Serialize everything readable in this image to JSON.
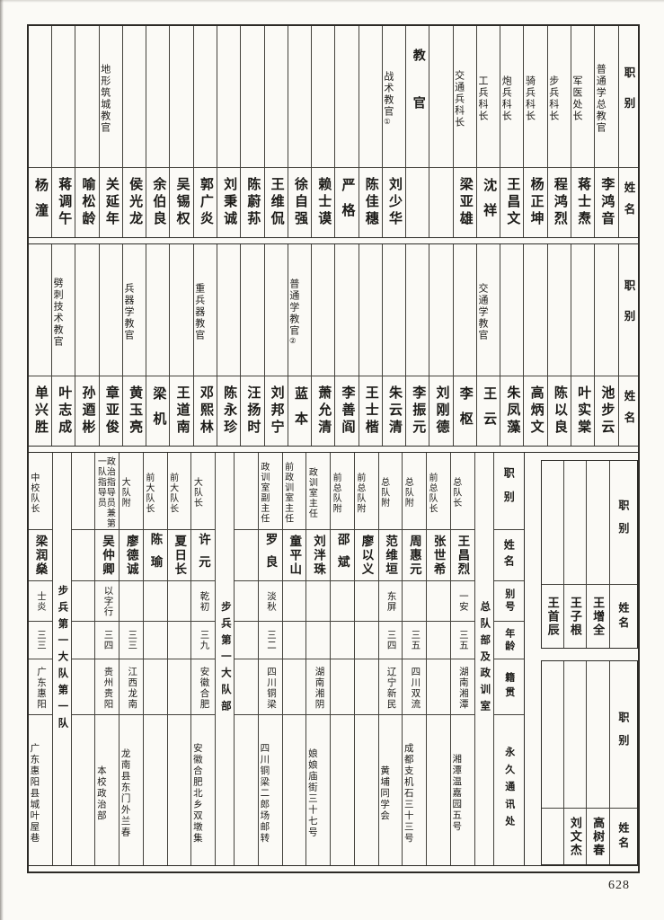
{
  "page_number": "628",
  "bands": [
    {
      "id": "instructors-upper",
      "header": {
        "position_label": "职别",
        "name_label": "姓名"
      },
      "columns": [
        {
          "position": "普通学总教官",
          "name": "李鸿音"
        },
        {
          "position": "军医处长",
          "name": "蒋士焘"
        },
        {
          "position": "步兵科长",
          "name": "程鸿烈"
        },
        {
          "position": "骑兵科长",
          "name": "杨正坤"
        },
        {
          "position": "炮兵科长",
          "name": "王昌文"
        },
        {
          "position": "工兵科长",
          "name": "沈祥"
        },
        {
          "position": "交通兵科长",
          "name": "梁亚雄"
        },
        {
          "position": "",
          "name": ""
        },
        {
          "position": "教官",
          "name": "",
          "wide": true
        },
        {
          "position": "战术教官",
          "footnote": "①",
          "name": "刘少华"
        },
        {
          "position": "",
          "name": "陈佳穗"
        },
        {
          "position": "",
          "name": "严格"
        },
        {
          "position": "",
          "name": "赖士谟"
        },
        {
          "position": "",
          "name": "徐自强"
        },
        {
          "position": "",
          "name": "王维侃"
        },
        {
          "position": "",
          "name": "陈蔚荪"
        },
        {
          "position": "",
          "name": "刘秉诚"
        },
        {
          "position": "",
          "name": "郭广炎"
        },
        {
          "position": "",
          "name": "吴锡权"
        },
        {
          "position": "",
          "name": "余伯良"
        },
        {
          "position": "",
          "name": "侯光龙"
        },
        {
          "position": "地形筑城教官",
          "name": "关延年"
        },
        {
          "position": "",
          "name": "喻松龄"
        },
        {
          "position": "",
          "name": "蒋调午"
        },
        {
          "position": "",
          "name": "杨潼"
        }
      ]
    },
    {
      "id": "instructors-middle",
      "header": {
        "position_label": "职别",
        "name_label": "姓名"
      },
      "columns": [
        {
          "position": "",
          "name": "池步云"
        },
        {
          "position": "",
          "name": "叶实棠"
        },
        {
          "position": "",
          "name": "陈以良"
        },
        {
          "position": "",
          "name": "高炳文"
        },
        {
          "position": "",
          "name": "朱凤藻"
        },
        {
          "position": "交通学教官",
          "name": "王云"
        },
        {
          "position": "",
          "name": "李枢"
        },
        {
          "position": "",
          "name": "刘刚德"
        },
        {
          "position": "",
          "name": "李振元"
        },
        {
          "position": "",
          "name": "朱云清"
        },
        {
          "position": "",
          "name": "王士楷"
        },
        {
          "position": "",
          "name": "李善阎"
        },
        {
          "position": "",
          "name": "萧允清"
        },
        {
          "position": "普通学教官",
          "footnote": "②",
          "name": "蓝本"
        },
        {
          "position": "",
          "name": "刘邦宁"
        },
        {
          "position": "",
          "name": "汪扬时"
        },
        {
          "position": "",
          "name": "陈永珍"
        },
        {
          "position": "重兵器教官",
          "name": "邓熙林"
        },
        {
          "position": "",
          "name": "王道南"
        },
        {
          "position": "",
          "name": "梁机"
        },
        {
          "position": "兵器学教官",
          "name": "黄玉亮"
        },
        {
          "position": "",
          "name": "章亚俊"
        },
        {
          "position": "",
          "name": "孙逎彬"
        },
        {
          "position": "劈刺技术教官",
          "name": "叶志成"
        },
        {
          "position": "",
          "name": "单兴胜"
        }
      ]
    }
  ],
  "bottom_band": {
    "header_rows": [
      "职别",
      "姓名",
      "别号",
      "年龄",
      "籍贯",
      "永久通讯处"
    ],
    "columns": [
      {
        "type": "label",
        "text": "总队部及政训室"
      },
      {
        "type": "data",
        "position": "总队长",
        "name": "王昌烈",
        "alias": "一安",
        "age": "三五",
        "origin": "湖南湘潭",
        "address": "湘潭温嘉园五号"
      },
      {
        "type": "data",
        "position": "前总队长",
        "name": "张世希",
        "alias": "",
        "age": "",
        "origin": "",
        "address": ""
      },
      {
        "type": "data",
        "position": "总队附",
        "name": "周惠元",
        "alias": "",
        "age": "三五",
        "origin": "四川双流",
        "address": "成都支机石三十三号"
      },
      {
        "type": "data",
        "position": "总队附",
        "name": "范维垣",
        "alias": "东屏",
        "age": "三四",
        "origin": "辽宁新民",
        "address": "黄埔同学会"
      },
      {
        "type": "data",
        "position": "前总队附",
        "name": "廖以义",
        "alias": "",
        "age": "",
        "origin": "",
        "address": ""
      },
      {
        "type": "data",
        "position": "前总队附",
        "name": "邵斌",
        "alias": "",
        "age": "",
        "origin": "",
        "address": ""
      },
      {
        "type": "data",
        "position": "政训室主任",
        "name": "刘泮珠",
        "alias": "",
        "age": "",
        "origin": "湖南湘阴",
        "address": "娘娘庙街三十七号"
      },
      {
        "type": "data",
        "position": "前政训室主任",
        "name": "童平山",
        "alias": "",
        "age": "",
        "origin": "",
        "address": ""
      },
      {
        "type": "data",
        "position": "政训室副主任",
        "name": "罗良",
        "alias": "淡秋",
        "age": "三二",
        "origin": "四川铜梁",
        "address": "四川铜梁二郎场邮转"
      },
      {
        "type": "data",
        "position": "",
        "name": "",
        "alias": "",
        "age": "",
        "origin": "",
        "address": ""
      },
      {
        "type": "label",
        "text": "步兵第一大队部"
      },
      {
        "type": "data",
        "position": "大队长",
        "name": "许元",
        "alias": "乾初",
        "age": "三九",
        "origin": "安徽合肥",
        "address": "安徽合肥北乡双墩集"
      },
      {
        "type": "data",
        "position": "前大队长",
        "name": "夏日长",
        "alias": "",
        "age": "",
        "origin": "",
        "address": ""
      },
      {
        "type": "data",
        "position": "前大队长",
        "name": "陈瑜",
        "alias": "",
        "age": "",
        "origin": "",
        "address": ""
      },
      {
        "type": "data",
        "position": "大队附",
        "name": "廖德诚",
        "alias": "",
        "age": "三三",
        "origin": "江西龙南",
        "address": "龙南县东门外兰春"
      },
      {
        "type": "data",
        "position": "政治指导员兼第一队指导员",
        "name": "吴仲卿",
        "alias": "以字行",
        "age": "三四",
        "origin": "贵州贵阳",
        "address": "本校政治部"
      },
      {
        "type": "data",
        "position": "",
        "name": "",
        "alias": "",
        "age": "",
        "origin": "",
        "address": ""
      },
      {
        "type": "label",
        "text": "步兵第一大队第一队"
      },
      {
        "type": "data",
        "position": "中校队长",
        "name": "梁润燊",
        "alias": "士炎",
        "age": "三三",
        "origin": "广东惠阳",
        "address": "广东惠阳县城叶屋巷"
      }
    ],
    "side_tables": [
      {
        "position_label": "职别",
        "name_label": "姓名",
        "entries": [
          "王增全",
          "王子根",
          "王首辰"
        ]
      },
      {
        "position_label": "职别",
        "name_label": "姓名",
        "entries": [
          "高树春",
          "刘文杰",
          ""
        ]
      }
    ]
  }
}
